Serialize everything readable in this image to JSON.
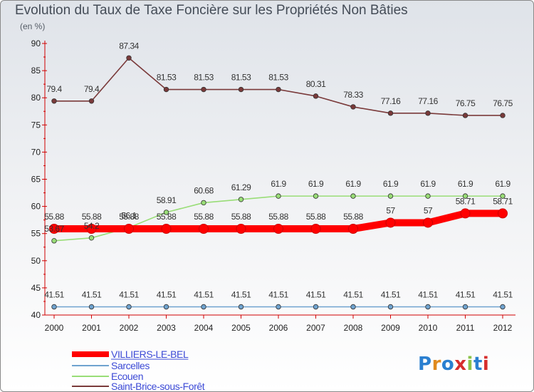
{
  "chart_data": {
    "type": "line",
    "title": "Evolution du Taux de Taxe Foncière sur les Propriétés Non Bâties",
    "subtitle": "(en %)",
    "xlabel": "",
    "ylabel": "",
    "ylim": [
      40,
      90
    ],
    "yticks": [
      40,
      45,
      50,
      55,
      60,
      65,
      70,
      75,
      80,
      85,
      90
    ],
    "categories": [
      "2000",
      "2001",
      "2002",
      "2003",
      "2004",
      "2005",
      "2006",
      "2007",
      "2008",
      "2009",
      "2010",
      "2011",
      "2012"
    ],
    "series": [
      {
        "name": "VILLIERS-LE-BEL",
        "color": "#ff0000",
        "values": [
          55.88,
          55.88,
          55.88,
          55.88,
          55.88,
          55.88,
          55.88,
          55.88,
          55.88,
          57,
          57,
          58.71,
          58.71
        ],
        "labels": [
          "55.88",
          "55.88",
          "55.88",
          "55.88",
          "55.88",
          "55.88",
          "55.88",
          "55.88",
          "55.88",
          "57",
          "57",
          "58.71",
          "58.71"
        ]
      },
      {
        "name": "Sarcelles",
        "color": "#6fa3cf",
        "values": [
          41.51,
          41.51,
          41.51,
          41.51,
          41.51,
          41.51,
          41.51,
          41.51,
          41.51,
          41.51,
          41.51,
          41.51,
          41.51
        ],
        "labels": [
          "41.51",
          "41.51",
          "41.51",
          "41.51",
          "41.51",
          "41.51",
          "41.51",
          "41.51",
          "41.51",
          "41.51",
          "41.51",
          "41.51",
          "41.51"
        ]
      },
      {
        "name": "Ecouen",
        "color": "#99dd77",
        "values": [
          53.67,
          54.2,
          56.1,
          58.91,
          60.68,
          61.29,
          61.9,
          61.9,
          61.9,
          61.9,
          61.9,
          61.9,
          61.9
        ],
        "labels": [
          "53.67",
          "54.2",
          "56.1",
          "58.91",
          "60.68",
          "61.29",
          "61.9",
          "61.9",
          "61.9",
          "61.9",
          "61.9",
          "61.9",
          "61.9"
        ]
      },
      {
        "name": "Saint-Brice-sous-Forêt",
        "color": "#7a3a3a",
        "values": [
          79.4,
          79.4,
          87.34,
          81.53,
          81.53,
          81.53,
          81.53,
          80.31,
          78.33,
          77.16,
          77.16,
          76.75,
          76.75
        ],
        "labels": [
          "79.4",
          "79.4",
          "87.34",
          "81.53",
          "81.53",
          "81.53",
          "81.53",
          "80.31",
          "78.33",
          "77.16",
          "77.16",
          "76.75",
          "76.75"
        ]
      }
    ],
    "legend": [
      "VILLIERS-LE-BEL",
      "Sarcelles",
      "Ecouen",
      "Saint-Brice-sous-Forêt"
    ],
    "legend_position": "bottom-left",
    "grid": false
  },
  "logo": {
    "text": "Proxiti"
  }
}
